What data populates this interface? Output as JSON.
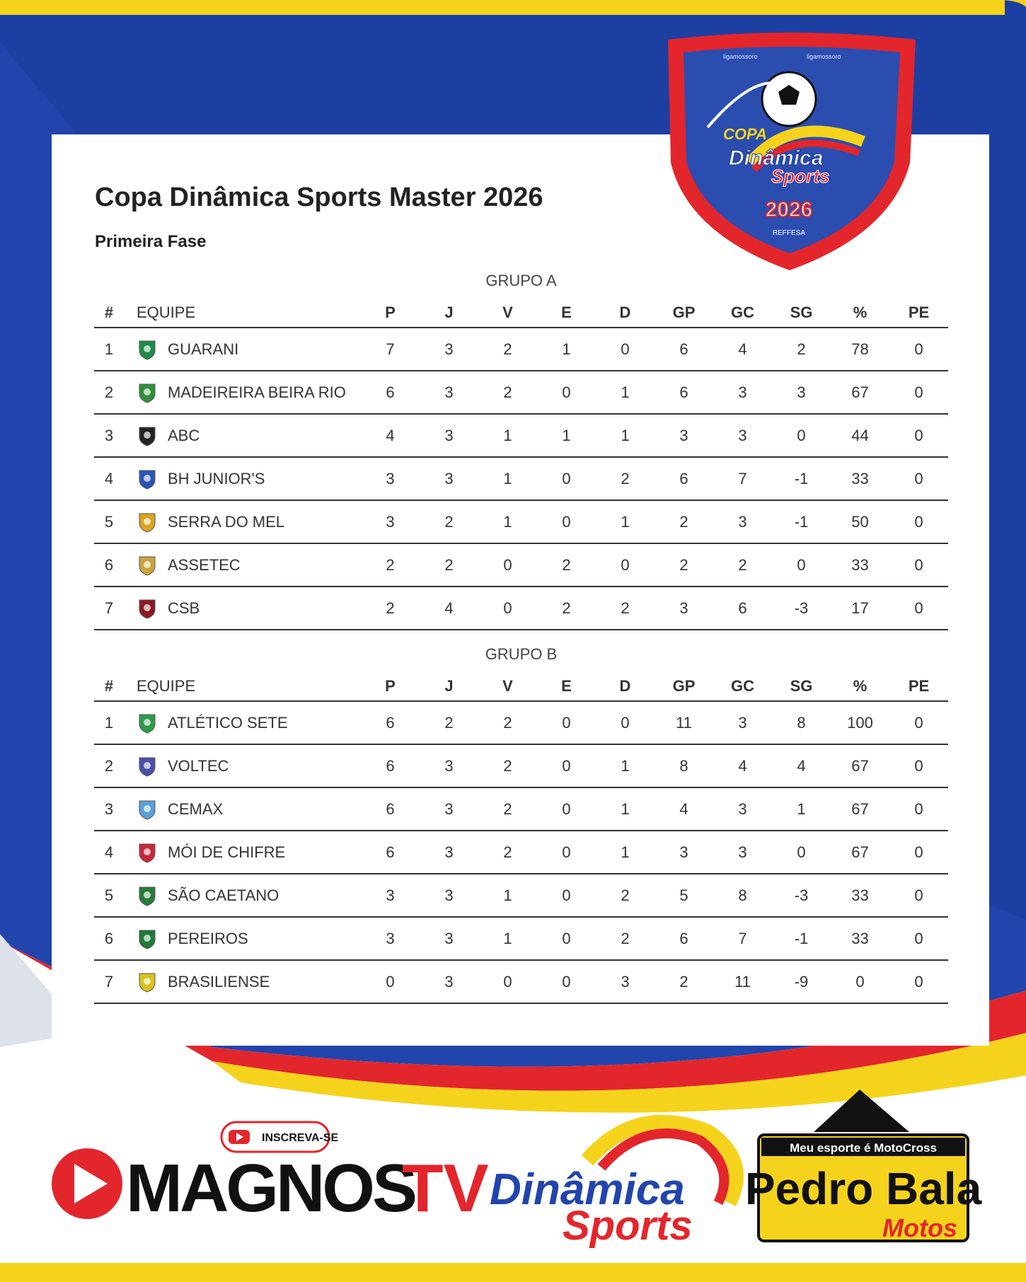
{
  "logo": {
    "social": [
      "ligamossoro",
      "ligamossoro"
    ],
    "copa": "COPA",
    "brand": "Dinâmica",
    "brand2": "Sports",
    "year": "2026",
    "org": "REFFESA"
  },
  "header": {
    "title": "Copa Dinâmica Sports Master 2026",
    "subtitle": "Primeira Fase"
  },
  "columns": [
    "#",
    "EQUIPE",
    "P",
    "J",
    "V",
    "E",
    "D",
    "GP",
    "GC",
    "SG",
    "%",
    "PE"
  ],
  "groups": [
    {
      "title": "GRUPO A",
      "rows": [
        [
          1,
          "GUARANI",
          7,
          3,
          2,
          1,
          0,
          6,
          4,
          2,
          78,
          0
        ],
        [
          2,
          "MADEIREIRA BEIRA RIO",
          6,
          3,
          2,
          0,
          1,
          6,
          3,
          3,
          67,
          0
        ],
        [
          3,
          "ABC",
          4,
          3,
          1,
          1,
          1,
          3,
          3,
          0,
          44,
          0
        ],
        [
          4,
          "BH JUNIOR'S",
          3,
          3,
          1,
          0,
          2,
          6,
          7,
          -1,
          33,
          0
        ],
        [
          5,
          "SERRA DO MEL",
          3,
          2,
          1,
          0,
          1,
          2,
          3,
          -1,
          50,
          0
        ],
        [
          6,
          "ASSETEC",
          2,
          2,
          0,
          2,
          0,
          2,
          2,
          0,
          33,
          0
        ],
        [
          7,
          "CSB",
          2,
          4,
          0,
          2,
          2,
          3,
          6,
          -3,
          17,
          0
        ]
      ]
    },
    {
      "title": "GRUPO B",
      "rows": [
        [
          1,
          "ATLÉTICO SETE",
          6,
          2,
          2,
          0,
          0,
          11,
          3,
          8,
          100,
          0
        ],
        [
          2,
          "VOLTEC",
          6,
          3,
          2,
          0,
          1,
          8,
          4,
          4,
          67,
          0
        ],
        [
          3,
          "CEMAX",
          6,
          3,
          2,
          0,
          1,
          4,
          3,
          1,
          67,
          0
        ],
        [
          4,
          "MÓI DE CHIFRE",
          6,
          3,
          2,
          0,
          1,
          3,
          3,
          0,
          67,
          0
        ],
        [
          5,
          "SÃO CAETANO",
          3,
          3,
          1,
          0,
          2,
          5,
          8,
          -3,
          33,
          0
        ],
        [
          6,
          "PEREIROS",
          3,
          3,
          1,
          0,
          2,
          6,
          7,
          -1,
          33,
          0
        ],
        [
          7,
          "BRASILIENSE",
          0,
          3,
          0,
          0,
          3,
          2,
          11,
          -9,
          0,
          0
        ]
      ]
    }
  ],
  "sponsors": {
    "subscribe": "INSCREVA-SE",
    "channel": "MAGNOS",
    "channel2": "TV",
    "brand": "Dinâmica",
    "brand2": "Sports",
    "moto_tagline": "Meu esporte é MotoCross",
    "moto_name": "Pedro Bala",
    "moto_name2": "Motos"
  }
}
